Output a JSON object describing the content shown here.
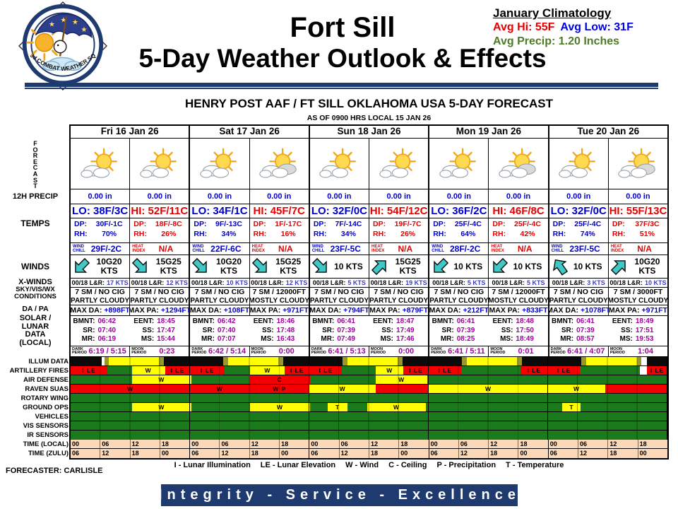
{
  "slide": {
    "title_line1": "Fort Sill",
    "title_line2": "5-Day Weather Outlook & Effects",
    "logo_unit": "3d COMBAT WEATHER SQ",
    "climatology": {
      "title": "January Climatology",
      "hi": "Avg Hi: 55F",
      "low": "Avg Low: 31F",
      "precip": "Avg Precip: 1.20 Inches"
    },
    "forecaster": "FORECASTER: CARLISLE",
    "legend_items": [
      "I - Lunar Illumination",
      "LE - Lunar Elevation",
      "W - Wind",
      "C - Ceiling",
      "P - Precipitation",
      "T - Temperature"
    ],
    "banner": "Integrity - Service - Excellence"
  },
  "table": {
    "title": "HENRY POST AAF / FT SILL OKLAHOMA USA 5-DAY FORECAST",
    "as_of": "AS OF 0900 HRS LOCAL 15 JAN 26",
    "dates": [
      "Fri 16 Jan 26",
      "Sat 17 Jan 26",
      "Sun 18 Jan 26",
      "Mon 19 Jan 26",
      "Tue 20 Jan 26"
    ],
    "row_labels": {
      "forecast": "FORECAST",
      "precip": "12H PRECIP",
      "temps": "TEMPS",
      "winds": "WINDS",
      "xwinds": "X-WINDS",
      "sky1": "SKY/VIS/WX",
      "sky2": "CONDITIONS",
      "dapa": "DA / PA",
      "solar": [
        "SOLAR /",
        "LUNAR",
        "DATA",
        "(LOCAL)"
      ],
      "time_local": "TIME (LOCAL)",
      "time_zulu": "TIME (ZULU)"
    },
    "field_labels": {
      "dp": "DP:",
      "rh": "RH:",
      "xwind": "00/18 L&R:",
      "dark": [
        "DARK",
        "PERIOD"
      ],
      "moon": [
        "MOON",
        "PERIOD"
      ]
    },
    "halves": [
      {
        "kind": "am",
        "precip": "0.00 in",
        "temp": "LO: 38F/3C",
        "dp": "30F/-1C",
        "rh": "70%",
        "idx_label": [
          "WIND",
          "CHILL"
        ],
        "idx": "29F/-2C",
        "wind": [
          "10G20",
          "KTS"
        ],
        "deg": 225,
        "xwind": "17 KTS",
        "sky": "7 SM / NO CIG",
        "cond": "PARTLY CLOUDY",
        "dapa_label": "MAX DA:",
        "dapa": "+898FT",
        "sun": [
          [
            "BMNT:",
            "06:42"
          ],
          [
            "SR:",
            "07:40"
          ],
          [
            "MR:",
            "06:19"
          ]
        ],
        "icon": "partly"
      },
      {
        "kind": "pm",
        "precip": "0.00 in",
        "temp": "HI: 52F/11C",
        "dp": "18F/-8C",
        "rh": "26%",
        "idx_label": [
          "HEAT",
          "INDEX"
        ],
        "idx": "N/A",
        "wind": [
          "15G25",
          "KTS"
        ],
        "deg": 135,
        "xwind": "12 KTS",
        "sky": "7 SM / NO CIG",
        "cond": "PARTLY CLOUDY",
        "dapa_label": "MAX PA:",
        "dapa": "+1294FT",
        "sun": [
          [
            "EENT:",
            "18:45"
          ],
          [
            "SS:",
            "17:47"
          ],
          [
            "MS:",
            "15:44"
          ]
        ],
        "icon": "partly"
      },
      {
        "kind": "am",
        "precip": "0.00 in",
        "temp": "LO: 34F/1C",
        "dp": "9F/-13C",
        "rh": "34%",
        "idx_label": [
          "WIND",
          "CHILL"
        ],
        "idx": "22F/-6C",
        "wind": [
          "10G20",
          "KTS"
        ],
        "deg": 135,
        "xwind": "10 KTS",
        "sky": "7 SM / NO CIG",
        "cond": "PARTLY CLOUDY",
        "dapa_label": "MAX DA:",
        "dapa": "+108FT",
        "sun": [
          [
            "BMNT:",
            "06:42"
          ],
          [
            "SR:",
            "07:40"
          ],
          [
            "MR:",
            "07:07"
          ]
        ],
        "icon": "partly"
      },
      {
        "kind": "pm",
        "precip": "0.00 in",
        "temp": "HI: 45F/7C",
        "dp": "1F/-17C",
        "rh": "16%",
        "idx_label": [
          "HEAT",
          "INDEX"
        ],
        "idx": "N/A",
        "wind": [
          "15G25",
          "KTS"
        ],
        "deg": 135,
        "xwind": "12 KTS",
        "sky": "7 SM / 12000FT",
        "cond": "MOSTLY CLOUDY",
        "dapa_label": "MAX PA:",
        "dapa": "+971FT",
        "sun": [
          [
            "EENT:",
            "18:46"
          ],
          [
            "SS:",
            "17:48"
          ],
          [
            "MS:",
            "16:43"
          ]
        ],
        "icon": "mostly"
      },
      {
        "kind": "am",
        "precip": "0.00 in",
        "temp": "LO: 32F/0C",
        "dp": "7F/-14C",
        "rh": "34%",
        "idx_label": [
          "WIND",
          "CHILL"
        ],
        "idx": "23F/-5C",
        "wind": [
          "10 KTS"
        ],
        "deg": 135,
        "xwind": "5 KTS",
        "sky": "7 SM / NO CIG",
        "cond": "PARTLY CLOUDY",
        "dapa_label": "MAX DA:",
        "dapa": "+794FT",
        "sun": [
          [
            "BMNT:",
            "06:41"
          ],
          [
            "SR:",
            "07:39"
          ],
          [
            "MR:",
            "07:49"
          ]
        ],
        "icon": "partly"
      },
      {
        "kind": "pm",
        "precip": "0.00 in",
        "temp": "HI: 54F/12C",
        "dp": "19F/-7C",
        "rh": "26%",
        "idx_label": [
          "HEAT",
          "INDEX"
        ],
        "idx": "N/A",
        "wind": [
          "15G25",
          "KTS"
        ],
        "deg": 45,
        "xwind": "19 KTS",
        "sky": "7 SM / NO CIG",
        "cond": "PARTLY CLOUDY",
        "dapa_label": "MAX PA:",
        "dapa": "+879FT",
        "sun": [
          [
            "EENT:",
            "18:47"
          ],
          [
            "SS:",
            "17:49"
          ],
          [
            "MS:",
            "17:46"
          ]
        ],
        "icon": "partly"
      },
      {
        "kind": "am",
        "precip": "0.00 in",
        "temp": "LO: 36F/2C",
        "dp": "25F/-4C",
        "rh": "64%",
        "idx_label": [
          "WIND",
          "CHILL"
        ],
        "idx": "28F/-2C",
        "wind": [
          "10 KTS"
        ],
        "deg": 225,
        "xwind": "5 KTS",
        "sky": "7 SM / NO CIG",
        "cond": "PARTLY CLOUDY",
        "dapa_label": "MAX DA:",
        "dapa": "+212FT",
        "sun": [
          [
            "BMNT:",
            "06:41"
          ],
          [
            "SR:",
            "07:39"
          ],
          [
            "MR:",
            "08:25"
          ]
        ],
        "icon": "partly"
      },
      {
        "kind": "pm",
        "precip": "0.00 in",
        "temp": "HI: 46F/8C",
        "dp": "25F/-4C",
        "rh": "42%",
        "idx_label": [
          "HEAT",
          "INDEX"
        ],
        "idx": "N/A",
        "wind": [
          "10 KTS"
        ],
        "deg": 225,
        "xwind": "5 KTS",
        "sky": "7 SM / 12000FT",
        "cond": "MOSTLY CLOUDY",
        "dapa_label": "MAX PA:",
        "dapa": "+833FT",
        "sun": [
          [
            "EENT:",
            "18:48"
          ],
          [
            "SS:",
            "17:50"
          ],
          [
            "MS:",
            "18:49"
          ]
        ],
        "icon": "mostly"
      },
      {
        "kind": "am",
        "precip": "0.00 in",
        "temp": "LO: 32F/0C",
        "dp": "25F/-4C",
        "rh": "74%",
        "idx_label": [
          "WIND",
          "CHILL"
        ],
        "idx": "23F/-5C",
        "wind": [
          "10 KTS"
        ],
        "deg": 325,
        "xwind": "3 KTS",
        "sky": "7 SM / NO CIG",
        "cond": "PARTLY CLOUDY",
        "dapa_label": "MAX DA:",
        "dapa": "+1078FT",
        "sun": [
          [
            "BMNT:",
            "06:41"
          ],
          [
            "SR:",
            "07:39"
          ],
          [
            "MR:",
            "08:57"
          ]
        ],
        "icon": "partly"
      },
      {
        "kind": "pm",
        "precip": "0.00 in",
        "temp": "HI: 55F/13C",
        "dp": "37F/3C",
        "rh": "51%",
        "idx_label": [
          "HEAT",
          "INDEX"
        ],
        "idx": "N/A",
        "wind": [
          "10G20",
          "KTS"
        ],
        "deg": 45,
        "xwind": "10 KTS",
        "sky": "7 SM / 3000FT",
        "cond": "MOSTLY CLOUDY",
        "dapa_label": "MAX PA:",
        "dapa": "+971FT",
        "sun": [
          [
            "EENT:",
            "18:49"
          ],
          [
            "SS:",
            "17:51"
          ],
          [
            "MS:",
            "19:53"
          ]
        ],
        "icon": "mostly"
      }
    ]
  },
  "illum": [
    {
      "dark": "6:19 / 5:15",
      "moon": "0:23"
    },
    {
      "dark": "6:42 / 5:14",
      "moon": "0:00"
    },
    {
      "dark": "6:41 / 5:13",
      "moon": "0:00"
    },
    {
      "dark": "6:41 / 5:11",
      "moon": "0:01"
    },
    {
      "dark": "6:41 / 4:07",
      "moon": "1:04"
    }
  ],
  "effects": {
    "rows": [
      {
        "label": "ILLUM DATA",
        "bg": "black",
        "segments": [
          {
            "s": 0,
            "e": 6.3,
            "c": "black"
          },
          {
            "s": 6.3,
            "e": 6.75,
            "c": "white"
          },
          {
            "s": 6.75,
            "e": 7.7,
            "c": "olive"
          },
          {
            "s": 7.7,
            "e": 17.8,
            "c": "yellow"
          },
          {
            "s": 17.8,
            "e": 18.8,
            "c": "olive"
          },
          {
            "s": 18.8,
            "e": 24,
            "c": "black"
          },
          {
            "s": 24,
            "e": 30.7,
            "c": "black"
          },
          {
            "s": 30.7,
            "e": 31.7,
            "c": "olive"
          },
          {
            "s": 31.7,
            "e": 41.8,
            "c": "yellow"
          },
          {
            "s": 41.8,
            "e": 42.8,
            "c": "olive"
          },
          {
            "s": 42.8,
            "e": 48,
            "c": "black"
          },
          {
            "s": 48,
            "e": 54.7,
            "c": "black"
          },
          {
            "s": 54.7,
            "e": 55.7,
            "c": "olive"
          },
          {
            "s": 55.7,
            "e": 65.8,
            "c": "yellow"
          },
          {
            "s": 65.8,
            "e": 66.8,
            "c": "olive"
          },
          {
            "s": 66.8,
            "e": 72,
            "c": "black"
          },
          {
            "s": 72,
            "e": 78.7,
            "c": "black"
          },
          {
            "s": 78.7,
            "e": 79.7,
            "c": "olive"
          },
          {
            "s": 79.7,
            "e": 89.8,
            "c": "yellow"
          },
          {
            "s": 89.8,
            "e": 90.8,
            "c": "olive"
          },
          {
            "s": 90.8,
            "e": 96,
            "c": "black"
          },
          {
            "s": 96,
            "e": 102.7,
            "c": "black"
          },
          {
            "s": 102.7,
            "e": 103.7,
            "c": "olive"
          },
          {
            "s": 103.7,
            "e": 113.9,
            "c": "yellow"
          },
          {
            "s": 113.9,
            "e": 114.8,
            "c": "olive"
          },
          {
            "s": 114.8,
            "e": 115.9,
            "c": "white"
          },
          {
            "s": 115.9,
            "e": 120,
            "c": "black"
          }
        ]
      },
      {
        "label": "ARTILLERY FIRES",
        "bg": "green",
        "segments": [
          {
            "s": 0,
            "e": 7.4,
            "c": "red",
            "t": "I LE"
          },
          {
            "s": 7.4,
            "e": 12.3,
            "c": "green"
          },
          {
            "s": 12.3,
            "e": 19,
            "c": "yellow",
            "t": "W"
          },
          {
            "s": 19,
            "e": 24,
            "c": "red",
            "t": "I LE"
          },
          {
            "s": 24,
            "e": 31,
            "c": "red",
            "t": "I LE"
          },
          {
            "s": 31,
            "e": 36.1,
            "c": "green"
          },
          {
            "s": 36.1,
            "e": 43.1,
            "c": "yellow",
            "t": "W"
          },
          {
            "s": 43.1,
            "e": 48,
            "c": "red",
            "t": "I LE"
          },
          {
            "s": 48,
            "e": 54.6,
            "c": "red",
            "t": "I LE"
          },
          {
            "s": 54.6,
            "e": 61.4,
            "c": "green"
          },
          {
            "s": 61.4,
            "e": 66.9,
            "c": "yellow",
            "t": "W"
          },
          {
            "s": 66.9,
            "e": 72,
            "c": "red",
            "t": "I LE"
          },
          {
            "s": 72,
            "e": 78.6,
            "c": "red",
            "t": "I LE"
          },
          {
            "s": 78.6,
            "e": 90.4,
            "c": "green"
          },
          {
            "s": 90.4,
            "e": 96,
            "c": "red",
            "t": "I LE"
          },
          {
            "s": 96,
            "e": 102.4,
            "c": "red",
            "t": "I LE"
          },
          {
            "s": 102.4,
            "e": 114.4,
            "c": "green"
          },
          {
            "s": 114.4,
            "e": 115.9,
            "c": "white"
          },
          {
            "s": 115.9,
            "e": 120,
            "c": "red",
            "t": "I LE"
          }
        ]
      },
      {
        "label": "AIR DEFENSE",
        "bg": "green",
        "segments": [
          {
            "s": 0,
            "e": 12.3,
            "c": "green"
          },
          {
            "s": 12.3,
            "e": 24.3,
            "c": "yellow",
            "t": "W"
          },
          {
            "s": 24.3,
            "e": 36,
            "c": "green"
          },
          {
            "s": 36,
            "e": 48.1,
            "c": "red",
            "t": "C"
          },
          {
            "s": 48.1,
            "e": 61.4,
            "c": "green"
          },
          {
            "s": 61.4,
            "e": 71.7,
            "c": "yellow",
            "t": "W"
          },
          {
            "s": 71.7,
            "e": 120,
            "c": "green"
          }
        ]
      },
      {
        "label": "RAVEN SUAS",
        "bg": "green",
        "segments": [
          {
            "s": 0,
            "e": 24,
            "c": "red",
            "t": "W"
          },
          {
            "s": 24,
            "e": 36,
            "c": "red",
            "t": "W"
          },
          {
            "s": 36,
            "e": 48,
            "c": "red",
            "t": "W P"
          },
          {
            "s": 48,
            "e": 61.4,
            "c": "yellow",
            "t": "W"
          },
          {
            "s": 61.4,
            "e": 72,
            "c": "red"
          },
          {
            "s": 72,
            "e": 96,
            "c": "yellow",
            "t": "W"
          },
          {
            "s": 96,
            "e": 107.5,
            "c": "yellow",
            "t": "W"
          },
          {
            "s": 107.5,
            "e": 120,
            "c": "red"
          }
        ]
      },
      {
        "label": "ROTARY WING",
        "bg": "green",
        "segments": [
          {
            "s": 0,
            "e": 120,
            "c": "green"
          }
        ]
      },
      {
        "label": "GROUND OPS",
        "bg": "green",
        "segments": [
          {
            "s": 0,
            "e": 12.3,
            "c": "green"
          },
          {
            "s": 12.3,
            "e": 24.3,
            "c": "yellow",
            "t": "W"
          },
          {
            "s": 24.3,
            "e": 36.1,
            "c": "green"
          },
          {
            "s": 36.1,
            "e": 48.1,
            "c": "yellow",
            "t": "W"
          },
          {
            "s": 48.1,
            "e": 51.7,
            "c": "green"
          },
          {
            "s": 51.7,
            "e": 55.7,
            "c": "yellow",
            "t": "T"
          },
          {
            "s": 55.7,
            "e": 59.7,
            "c": "green"
          },
          {
            "s": 59.7,
            "e": 71.4,
            "c": "yellow",
            "t": "W"
          },
          {
            "s": 71.4,
            "e": 98.9,
            "c": "green"
          },
          {
            "s": 98.9,
            "e": 102.6,
            "c": "yellow",
            "t": "T"
          },
          {
            "s": 102.6,
            "e": 120,
            "c": "green"
          }
        ]
      },
      {
        "label": "VEHICLES",
        "bg": "green",
        "segments": [
          {
            "s": 0,
            "e": 120,
            "c": "green"
          }
        ]
      },
      {
        "label": "VIS SENSORS",
        "bg": "green",
        "segments": [
          {
            "s": 0,
            "e": 120,
            "c": "green"
          }
        ]
      },
      {
        "label": "IR SENSORS",
        "bg": "green",
        "segments": [
          {
            "s": 0,
            "e": 120,
            "c": "green"
          }
        ]
      }
    ],
    "time_local": [
      "00",
      "06",
      "12",
      "18",
      "00",
      "06",
      "12",
      "18",
      "00",
      "06",
      "12",
      "18",
      "00",
      "06",
      "12",
      "18",
      "00",
      "06",
      "12",
      "18"
    ],
    "time_zulu": [
      "06",
      "12",
      "18",
      "00",
      "06",
      "12",
      "18",
      "00",
      "06",
      "12",
      "18",
      "00",
      "06",
      "12",
      "18",
      "00",
      "06",
      "12",
      "18",
      "00"
    ]
  },
  "colors": {
    "navy": "#1E3A6E",
    "temp_am_blue": "#0000CC",
    "temp_pm_red": "#E60000",
    "lunar_purple": "#A000A0",
    "xwind_blue": "#3A3ACC",
    "time_band_peach": "#FBD8B8",
    "segment": {
      "red": "#F40000",
      "yellow": "#FFFF00",
      "green": "#1B7A1B",
      "black": "#0A0A0A",
      "white": "#FFFFFF",
      "olive": "#99992B"
    }
  }
}
